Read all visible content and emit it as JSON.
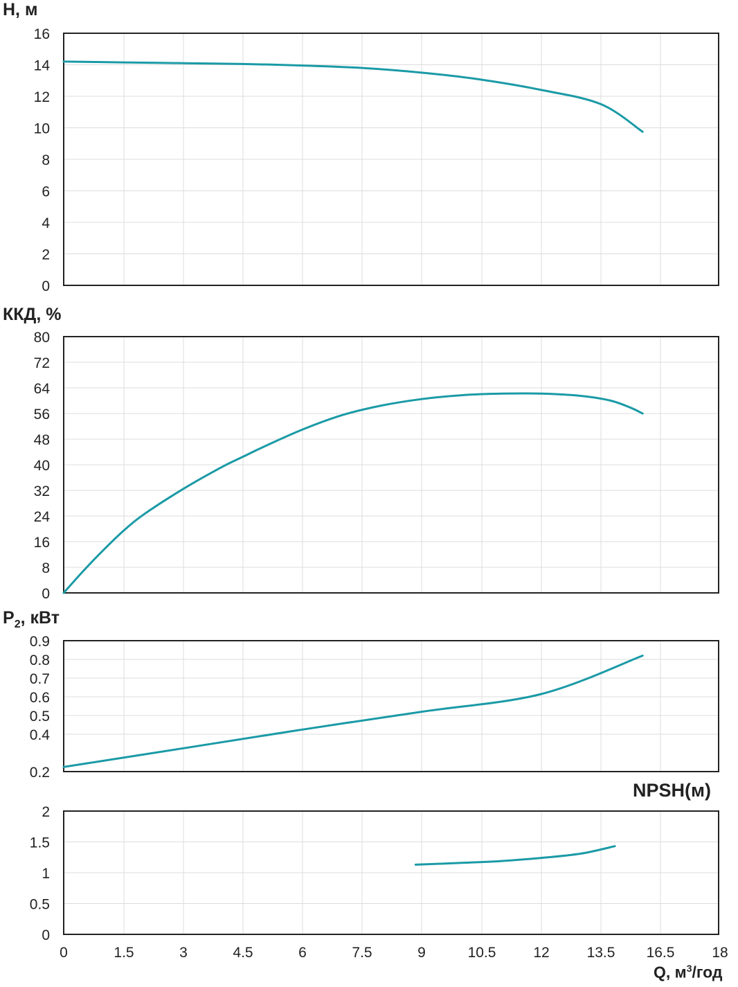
{
  "colors": {
    "curve": "#1a9aa6",
    "grid": "#dcdcdc",
    "frame": "#222222",
    "text": "#222222"
  },
  "x_axis": {
    "label_prefix": "Q, м",
    "label_sup": "3",
    "label_suffix": "/год",
    "ticks": [
      "0",
      "1.5",
      "3",
      "4.5",
      "6",
      "7.5",
      "9",
      "10.5",
      "12",
      "13.5",
      "16.5",
      "18"
    ],
    "tick_values": [
      0,
      1.5,
      3,
      4.5,
      6,
      7.5,
      9,
      10.5,
      12,
      13.5,
      16.5,
      18
    ],
    "range": [
      0,
      16.5
    ]
  },
  "chart_data": [
    {
      "type": "line",
      "ylabel": "H, м",
      "xlim": [
        0,
        16.5
      ],
      "ylim": [
        0,
        16
      ],
      "yticks": [
        "0",
        "2",
        "4",
        "6",
        "8",
        "10",
        "12",
        "14",
        "16"
      ],
      "grid": true,
      "series": [
        {
          "x": [
            0,
            1.5,
            3,
            4.5,
            6,
            7.5,
            9,
            10.5,
            12,
            13.5,
            15.6
          ],
          "y": [
            14.2,
            14.15,
            14.1,
            14.05,
            13.95,
            13.8,
            13.5,
            13.05,
            12.4,
            11.5,
            9.75
          ]
        }
      ]
    },
    {
      "type": "line",
      "ylabel": "ККД, %",
      "xlim": [
        0,
        16.5
      ],
      "ylim": [
        0,
        80
      ],
      "yticks": [
        "0",
        "8",
        "16",
        "24",
        "32",
        "40",
        "48",
        "56",
        "64",
        "72",
        "80"
      ],
      "grid": true,
      "series": [
        {
          "x": [
            0,
            0.5,
            1,
            1.5,
            2,
            3,
            4,
            4.5,
            5,
            6,
            7,
            8,
            9,
            10,
            11,
            12,
            13,
            14,
            15,
            15.6
          ],
          "y": [
            0,
            7,
            13.5,
            19.5,
            24.5,
            32.5,
            39.5,
            42.5,
            45.5,
            51,
            55.5,
            58.5,
            60.5,
            61.7,
            62.2,
            62.2,
            61.5,
            60,
            57.8,
            56
          ]
        }
      ]
    },
    {
      "type": "line",
      "ylabel": "P",
      "ylabel_sub": "2",
      "ylabel_suffix": ", кВт",
      "xlim": [
        0,
        16.5
      ],
      "ylim": [
        0.2,
        0.9
      ],
      "yticks": [
        "0.2",
        "0.4",
        "0.5",
        "0.6",
        "0.7",
        "0.8",
        "0.9"
      ],
      "ytick_values": [
        0.2,
        0.4,
        0.5,
        0.6,
        0.7,
        0.8,
        0.9
      ],
      "grid": true,
      "series": [
        {
          "x": [
            0,
            3,
            6,
            9,
            12,
            15.6
          ],
          "y": [
            0.225,
            0.325,
            0.425,
            0.52,
            0.615,
            0.82
          ]
        }
      ]
    },
    {
      "type": "line",
      "title": "NPSH(м)",
      "xlim": [
        0,
        16.5
      ],
      "ylim": [
        0,
        2
      ],
      "yticks": [
        "0",
        "0.5",
        "1",
        "1.5",
        "2"
      ],
      "grid": true,
      "series": [
        {
          "x": [
            8.85,
            10,
            11,
            12,
            13,
            14.2
          ],
          "y": [
            1.13,
            1.16,
            1.19,
            1.24,
            1.31,
            1.43
          ]
        }
      ]
    }
  ]
}
